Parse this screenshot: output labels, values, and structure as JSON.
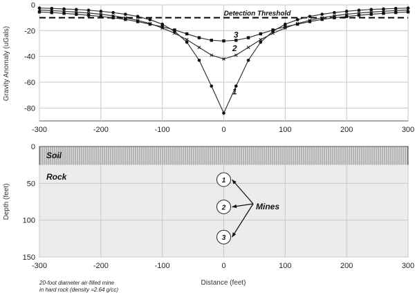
{
  "chart_data": [
    {
      "type": "line",
      "ylabel": "Gravity Anomaly (uGals)",
      "xlabel": "",
      "xlim": [
        -300,
        300
      ],
      "ylim": [
        -90,
        0
      ],
      "x_ticks": [
        "-300",
        "-200",
        "-100",
        "0",
        "100",
        "200",
        "300"
      ],
      "y_ticks": [
        "0",
        "-20",
        "-40",
        "-60",
        "-80"
      ],
      "grid": true,
      "threshold": {
        "value": -10,
        "label": "Detection Threshold"
      },
      "series": [
        {
          "name": "1",
          "marker": "circle",
          "x": [
            -300,
            -280,
            -260,
            -240,
            -220,
            -200,
            -180,
            -160,
            -140,
            -120,
            -100,
            -80,
            -60,
            -40,
            -20,
            0,
            20,
            40,
            60,
            80,
            100,
            120,
            140,
            160,
            180,
            200,
            220,
            240,
            260,
            280,
            300
          ],
          "y": [
            -2.5,
            -2.8,
            -3.2,
            -3.6,
            -4.2,
            -5,
            -6,
            -7.3,
            -9,
            -11.5,
            -15,
            -20.5,
            -29,
            -43,
            -63,
            -84,
            -63,
            -43,
            -29,
            -20.5,
            -15,
            -11.5,
            -9,
            -7.3,
            -6,
            -5,
            -4.2,
            -3.6,
            -3.2,
            -2.8,
            -2.5
          ]
        },
        {
          "name": "2",
          "marker": "cross",
          "x": [
            -300,
            -280,
            -260,
            -240,
            -220,
            -200,
            -180,
            -160,
            -140,
            -120,
            -100,
            -80,
            -60,
            -40,
            -20,
            0,
            20,
            40,
            60,
            80,
            100,
            120,
            140,
            160,
            180,
            200,
            220,
            240,
            260,
            280,
            300
          ],
          "y": [
            -4,
            -4.5,
            -5,
            -5.6,
            -6.4,
            -7.3,
            -8.5,
            -10,
            -12,
            -14.5,
            -18,
            -22,
            -27,
            -33,
            -39,
            -42,
            -39,
            -33,
            -27,
            -22,
            -18,
            -14.5,
            -12,
            -10,
            -8.5,
            -7.3,
            -6.4,
            -5.6,
            -5,
            -4.5,
            -4
          ]
        },
        {
          "name": "3",
          "marker": "square",
          "x": [
            -300,
            -280,
            -260,
            -240,
            -220,
            -200,
            -180,
            -160,
            -140,
            -120,
            -100,
            -80,
            -60,
            -40,
            -20,
            0,
            20,
            40,
            60,
            80,
            100,
            120,
            140,
            160,
            180,
            200,
            220,
            240,
            260,
            280,
            300
          ],
          "y": [
            -5.5,
            -6,
            -6.6,
            -7.3,
            -8.1,
            -9,
            -10,
            -11.3,
            -13,
            -15,
            -17,
            -19.5,
            -22.5,
            -25.5,
            -27.5,
            -28,
            -27.5,
            -25.5,
            -22.5,
            -19.5,
            -17,
            -15,
            -13,
            -11.3,
            -10,
            -9,
            -8.1,
            -7.3,
            -6.6,
            -6,
            -5.5
          ]
        }
      ]
    },
    {
      "type": "diagram",
      "xlabel": "Distance (feet)",
      "ylabel": "Depth (feet)",
      "xlim": [
        -300,
        300
      ],
      "ylim": [
        0,
        150
      ],
      "x_ticks": [
        "-300",
        "-200",
        "-100",
        "0",
        "100",
        "200",
        "300"
      ],
      "y_ticks": [
        "0",
        "50",
        "100",
        "150"
      ],
      "layers": [
        {
          "name": "Soil",
          "top": 0,
          "bottom": 25
        },
        {
          "name": "Rock",
          "top": 25,
          "bottom": 150
        }
      ],
      "mines": [
        {
          "label": "1",
          "x": 0,
          "depth": 45
        },
        {
          "label": "2",
          "x": 0,
          "depth": 82
        },
        {
          "label": "3",
          "x": 0,
          "depth": 123
        }
      ],
      "mines_label": "Mines",
      "note": [
        "20-foot diameter air-filled mine",
        "in hard rock (density =2.64 g/cc)"
      ]
    }
  ],
  "colors": {
    "line": "#333333",
    "grid": "#c8c8c8",
    "soil": "#c4c4c4",
    "rock": "#ececec"
  }
}
